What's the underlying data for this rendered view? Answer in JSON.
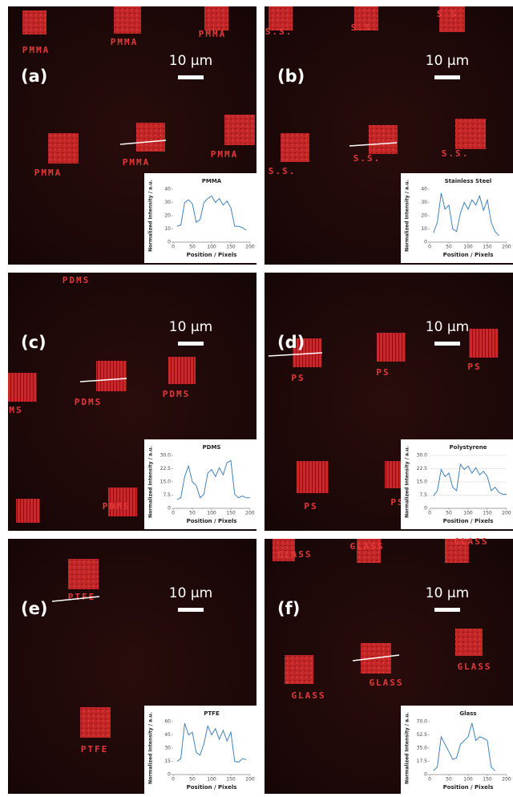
{
  "panels": [
    {
      "label": "(a)",
      "scale": "10 µm",
      "image_labels": [
        "PMMA",
        "PMMA",
        "PMMA",
        "PMMA",
        "PMMA",
        "PMMA"
      ]
    },
    {
      "label": "(b)",
      "scale": "10 µm",
      "image_labels": [
        "S.S.",
        "S.S.",
        "S.S.",
        "S.S.",
        "S.S.",
        "S.S."
      ]
    },
    {
      "label": "(c)",
      "scale": "10 µm",
      "image_labels": [
        "PDMS",
        "MS",
        "PDMS",
        "PDMS",
        "PDMS"
      ]
    },
    {
      "label": "(d)",
      "scale": "10 µm",
      "image_labels": [
        "PS",
        "PS",
        "PS",
        "PS",
        "PS"
      ]
    },
    {
      "label": "(e)",
      "scale": "10 µm",
      "image_labels": [
        "PTFE",
        "PTFE"
      ]
    },
    {
      "label": "(f)",
      "scale": "10 µm",
      "image_labels": [
        "GLASS",
        "GLASS",
        "GLASS",
        "GLASS",
        "GLASS",
        "GLASS"
      ]
    }
  ],
  "chart_data": [
    {
      "type": "line",
      "title": "PMMA",
      "x_label": "Position / Pixels",
      "y_label": "Normalized Intensity / a.u.",
      "color": "#2e75b6",
      "x": [
        10,
        20,
        30,
        40,
        50,
        60,
        70,
        80,
        90,
        100,
        110,
        120,
        130,
        140,
        150,
        160,
        170,
        180,
        190
      ],
      "values": [
        12,
        13,
        30,
        32,
        29,
        15,
        17,
        30,
        33,
        35,
        30,
        33,
        28,
        31,
        26,
        12,
        12,
        11,
        9
      ],
      "xlim": [
        0,
        200
      ],
      "xticks": [
        0,
        50,
        100,
        150,
        200
      ],
      "ylim": [
        0,
        40
      ],
      "yticks": [
        0,
        10,
        20,
        30,
        40
      ],
      "grid": false
    },
    {
      "type": "line",
      "title": "Stainless Steel",
      "x_label": "Position / Pixels",
      "y_label": "Normalized Intensity / a.u.",
      "color": "#2e75b6",
      "x": [
        10,
        20,
        30,
        40,
        50,
        60,
        70,
        80,
        90,
        100,
        110,
        120,
        130,
        140,
        150,
        160,
        170,
        180
      ],
      "values": [
        7,
        15,
        37,
        25,
        28,
        10,
        8,
        22,
        30,
        25,
        32,
        28,
        35,
        24,
        32,
        15,
        8,
        5
      ],
      "xlim": [
        0,
        200
      ],
      "xticks": [
        0,
        50,
        100,
        150,
        200
      ],
      "ylim": [
        0,
        40
      ],
      "yticks": [
        0,
        10,
        20,
        30,
        40
      ],
      "grid": false
    },
    {
      "type": "line",
      "title": "PDMS",
      "x_label": "Position / Pixels",
      "y_label": "Normalized Intensity / a.u.",
      "color": "#2e75b6",
      "x": [
        10,
        20,
        30,
        40,
        50,
        60,
        70,
        80,
        90,
        100,
        110,
        120,
        130,
        140,
        150,
        160,
        170,
        180,
        190,
        200
      ],
      "values": [
        5,
        6,
        18,
        24,
        15,
        13,
        6,
        8,
        20,
        22,
        18,
        23,
        19,
        26,
        27,
        8,
        6,
        7,
        6,
        6
      ],
      "xlim": [
        0,
        200
      ],
      "xticks": [
        0,
        50,
        100,
        150,
        200
      ],
      "ylim": [
        0,
        30
      ],
      "yticks": [
        0,
        7.5,
        {
          "value": 15,
          "label": "15.0"
        },
        22.5,
        {
          "value": 30,
          "label": "30.0"
        }
      ],
      "grid": false
    },
    {
      "type": "line",
      "title": "Polystyrene",
      "x_label": "Position / Pixels",
      "y_label": "Normalized Intensity / a.u.",
      "color": "#2e75b6",
      "x": [
        10,
        20,
        30,
        40,
        50,
        60,
        70,
        80,
        90,
        100,
        110,
        120,
        130,
        140,
        150,
        160,
        170,
        180,
        190,
        200
      ],
      "values": [
        7,
        10,
        22,
        18,
        20,
        12,
        10,
        25,
        22,
        24,
        20,
        23,
        19,
        21,
        18,
        10,
        12,
        9,
        8,
        8
      ],
      "xlim": [
        0,
        200
      ],
      "xticks": [
        0,
        50,
        100,
        150,
        200
      ],
      "ylim": [
        0,
        30
      ],
      "yticks": [
        0,
        7.5,
        {
          "value": 15,
          "label": "15.0"
        },
        22.5,
        {
          "value": 30,
          "label": "30.0"
        }
      ],
      "grid": true
    },
    {
      "type": "line",
      "title": "PTFE",
      "x_label": "Position / Pixels",
      "y_label": "Normalized Intensity / a.u.",
      "color": "#2e75b6",
      "x": [
        10,
        20,
        30,
        40,
        50,
        60,
        70,
        80,
        90,
        100,
        110,
        120,
        130,
        140,
        150,
        160,
        170,
        180,
        190
      ],
      "values": [
        15,
        18,
        58,
        45,
        48,
        25,
        22,
        35,
        55,
        45,
        52,
        40,
        50,
        38,
        48,
        15,
        14,
        18,
        17
      ],
      "xlim": [
        0,
        200
      ],
      "xticks": [
        0,
        50,
        100,
        150,
        200
      ],
      "ylim": [
        0,
        60
      ],
      "yticks": [
        0,
        15,
        30,
        45,
        60
      ],
      "grid": false
    },
    {
      "type": "line",
      "title": "Glass",
      "x_label": "Position / Pixels",
      "y_label": "Normalized Intensity / a.u.",
      "color": "#2e75b6",
      "x": [
        10,
        20,
        30,
        40,
        50,
        60,
        70,
        80,
        90,
        100,
        110,
        120,
        130,
        140,
        150,
        160,
        170
      ],
      "values": [
        5,
        10,
        50,
        40,
        30,
        20,
        22,
        40,
        45,
        50,
        68,
        45,
        50,
        48,
        45,
        10,
        5
      ],
      "xlim": [
        0,
        200
      ],
      "xticks": [
        0,
        50,
        100,
        150,
        200
      ],
      "ylim": [
        0,
        70
      ],
      "yticks": [
        0,
        17.5,
        {
          "value": 35,
          "label": "35.0"
        },
        52.5,
        {
          "value": 70,
          "label": "70.0"
        }
      ],
      "grid": false
    }
  ]
}
